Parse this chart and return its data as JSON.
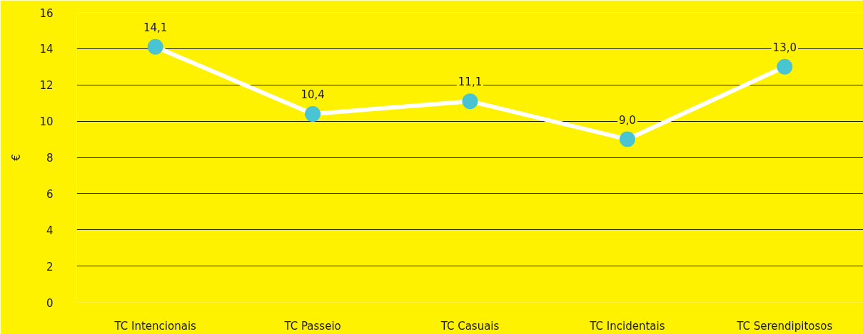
{
  "chart_data": {
    "type": "line",
    "ylabel": "€",
    "categories": [
      "TC Intencionais",
      "TC Passeio",
      "TC Casuais",
      "TC Incidentais",
      "TC Serendipitosos"
    ],
    "series": [
      {
        "color": "#ffffff",
        "colors": [
          "#48c4d3",
          "#48c4d3",
          "#48c4d3",
          "#48c4d3",
          "#48c4d3"
        ],
        "values": [
          14.1,
          10.4,
          11.1,
          9.0,
          13.0
        ],
        "value_labels": [
          "14,1",
          "10,4",
          "11,1",
          "9,0",
          "13,0"
        ]
      }
    ],
    "marker": "circle",
    "ylim": [
      0,
      16
    ],
    "yticks": [
      0,
      2,
      4,
      6,
      8,
      10,
      12,
      14,
      16
    ],
    "grid": "y"
  }
}
